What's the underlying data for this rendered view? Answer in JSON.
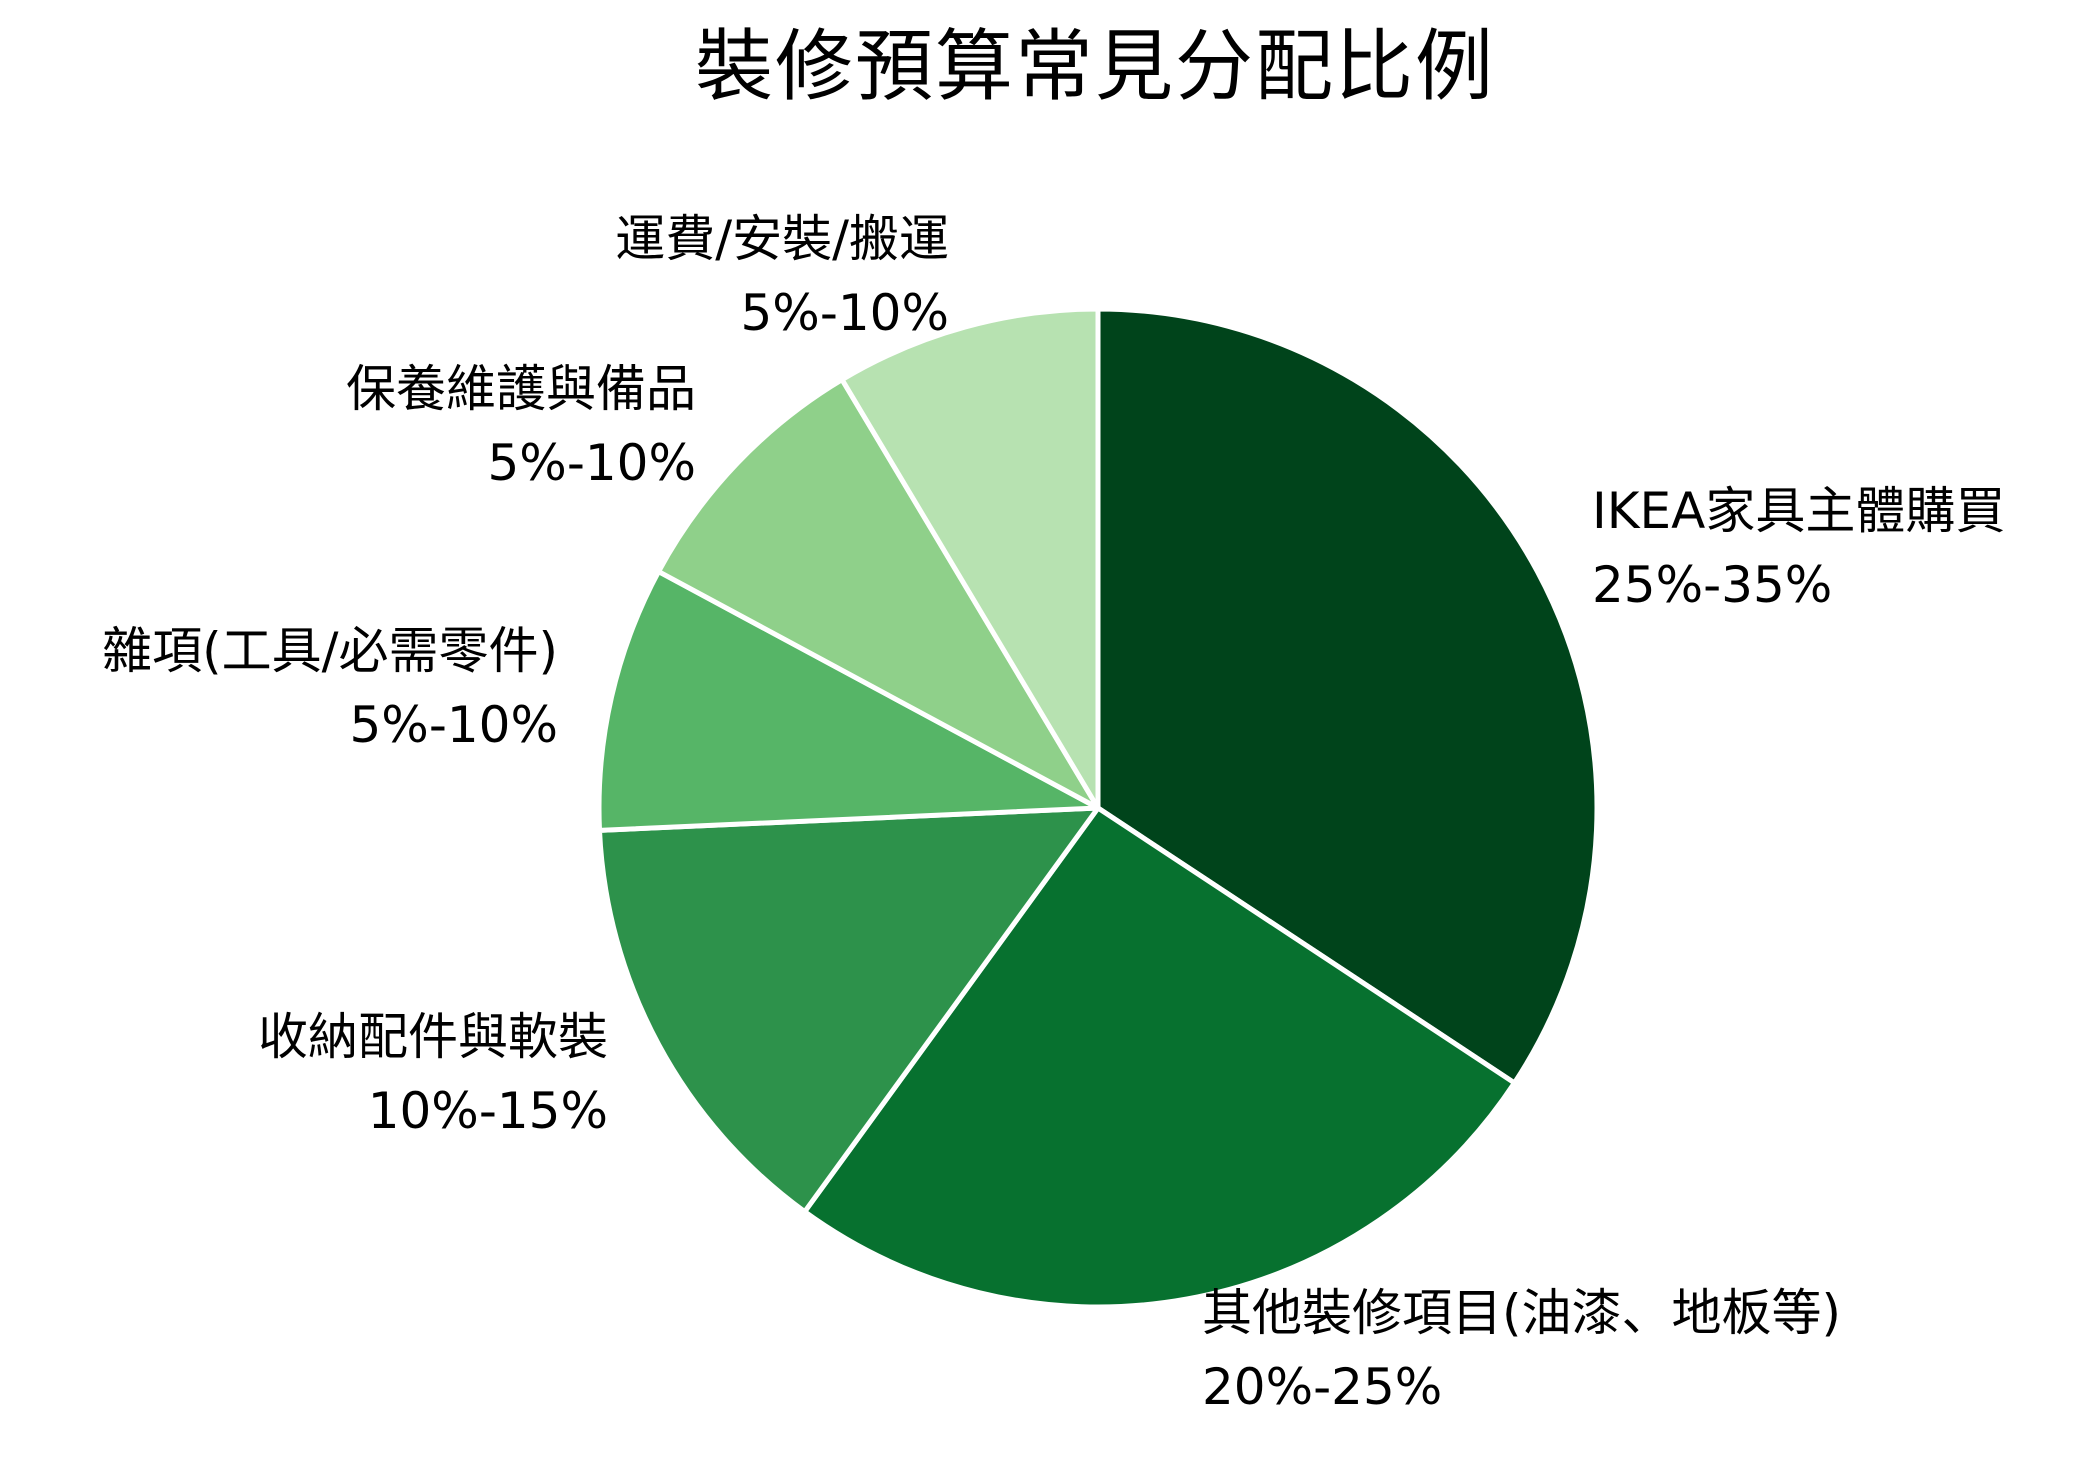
{
  "chart_data": {
    "type": "pie",
    "title": "裝修預算常見分配比例",
    "start_angle": "12 o'clock, clockwise",
    "categories": [
      "IKEA家具主體購買",
      "其他裝修項目(油漆、地板等)",
      "收納配件與軟裝",
      "雜項(工具/必需零件)",
      "保養維護與備品",
      "運費/安裝/搬運"
    ],
    "range_labels": [
      "25%-35%",
      "20%-25%",
      "10%-15%",
      "5%-10%",
      "5%-10%",
      "5%-10%"
    ],
    "values": [
      30,
      22.5,
      12.5,
      7.5,
      7.5,
      7.5
    ],
    "shares_percent": [
      34.3,
      25.7,
      14.3,
      8.6,
      8.6,
      8.6
    ],
    "colors": [
      "#00441b",
      "#07712f",
      "#2d924b",
      "#56b567",
      "#8fd08a",
      "#b7e2b1"
    ],
    "edge_color": "#ffffff",
    "legend": "none (labels placed outside slices)"
  },
  "title": "裝修預算常見分配比例",
  "slices": [
    {
      "name": "IKEA家具主體購買",
      "range": "25%-35%"
    },
    {
      "name": "其他裝修項目(油漆、地板等)",
      "range": "20%-25%"
    },
    {
      "name": "收納配件與軟裝",
      "range": "10%-15%"
    },
    {
      "name": "雜項(工具/必需零件)",
      "range": "5%-10%"
    },
    {
      "name": "保養維護與備品",
      "range": "5%-10%"
    },
    {
      "name": "運費/安裝/搬運",
      "range": "5%-10%"
    }
  ]
}
